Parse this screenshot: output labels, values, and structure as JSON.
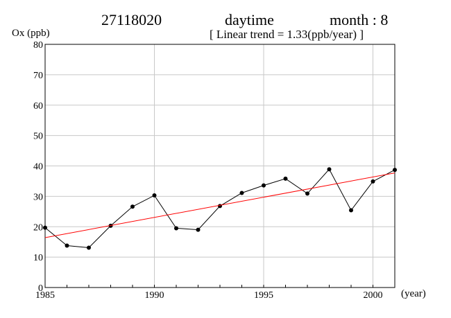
{
  "header": {
    "station": "27118020",
    "period": "daytime",
    "month": "month : 8",
    "trend": "[ Linear trend = 1.33(ppb/year) ]"
  },
  "chart_data": {
    "type": "line",
    "title": "",
    "xlabel": "(year)",
    "ylabel": "Ox (ppb)",
    "xlim": [
      1985,
      2001
    ],
    "ylim": [
      0,
      80
    ],
    "x_ticks": [
      1985,
      1990,
      1995,
      2000
    ],
    "y_ticks": [
      0,
      10,
      20,
      30,
      40,
      50,
      60,
      70,
      80
    ],
    "grid": true,
    "series": [
      {
        "x": [
          1985,
          1986,
          1987,
          1988,
          1989,
          1990,
          1991,
          1992,
          1993,
          1994,
          1995,
          1996,
          1997,
          1998,
          1999,
          2000,
          2001
        ],
        "values": [
          19.7,
          13.8,
          13.1,
          20.3,
          26.6,
          30.3,
          19.5,
          19.0,
          26.8,
          31.1,
          33.6,
          35.8,
          30.9,
          38.9,
          25.4,
          34.9,
          38.7
        ],
        "color": "#000000",
        "markers": true
      },
      {
        "x": [
          1985,
          2001
        ],
        "values": [
          16.4,
          37.7
        ],
        "color": "#ff0000",
        "markers": false
      }
    ]
  }
}
